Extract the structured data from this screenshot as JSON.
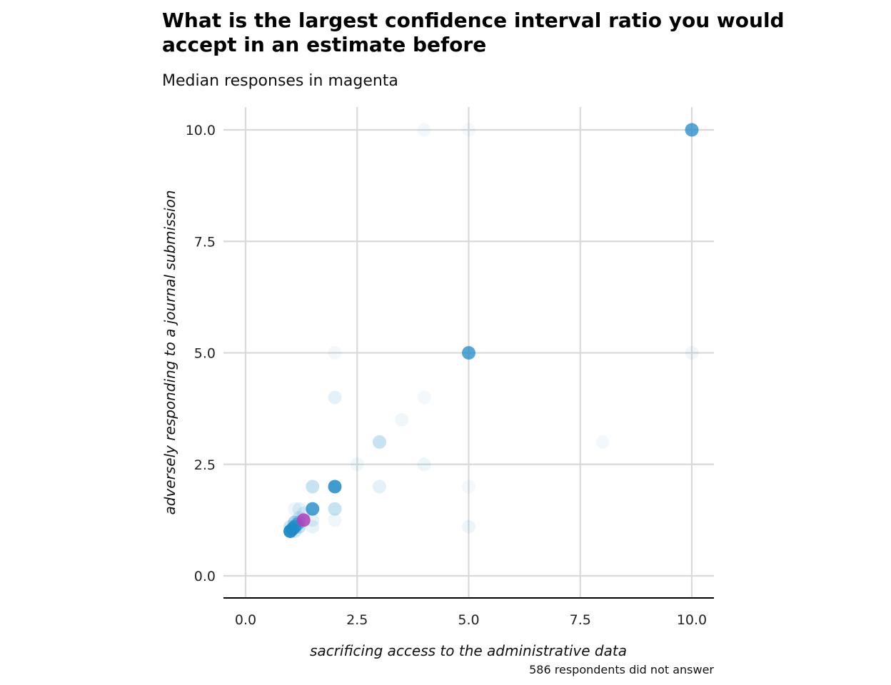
{
  "chart_data": {
    "type": "scatter",
    "title": "What is the largest confidence interval ratio you would accept in an estimate before",
    "subtitle": "Median responses in magenta",
    "xlabel": "sacrificing access to the administrative data",
    "ylabel": "adversely responding to a journal submission",
    "caption": "586 respondents did not answer",
    "xlim": [
      -0.5,
      10.5
    ],
    "ylim": [
      0.0,
      10.5
    ],
    "x_ticks": [
      "0.0",
      "2.5",
      "5.0",
      "7.5",
      "10.0"
    ],
    "y_ticks": [
      "0.0",
      "2.5",
      "5.0",
      "7.5",
      "10.0"
    ],
    "x_tick_values": [
      0,
      2.5,
      5,
      7.5,
      10
    ],
    "y_tick_values": [
      0,
      2.5,
      5,
      7.5,
      10
    ],
    "grid": true,
    "colors": {
      "points": "#1f8ac8",
      "median": "#b040b8",
      "grid": "#d9d9d9",
      "axis": "#000000"
    },
    "series": [
      {
        "points": [
          {
            "x": 10,
            "y": 10,
            "opacity": 0.75
          },
          {
            "x": 4,
            "y": 10,
            "opacity": 0.06
          },
          {
            "x": 5,
            "y": 10,
            "opacity": 0.05
          },
          {
            "x": 5,
            "y": 5,
            "opacity": 0.75
          },
          {
            "x": 10,
            "y": 5,
            "opacity": 0.07
          },
          {
            "x": 2,
            "y": 5,
            "opacity": 0.06
          },
          {
            "x": 2,
            "y": 4,
            "opacity": 0.12
          },
          {
            "x": 4,
            "y": 4,
            "opacity": 0.06
          },
          {
            "x": 3.5,
            "y": 3.5,
            "opacity": 0.07
          },
          {
            "x": 3,
            "y": 3,
            "opacity": 0.25
          },
          {
            "x": 8,
            "y": 3,
            "opacity": 0.06
          },
          {
            "x": 2.5,
            "y": 2.5,
            "opacity": 0.07
          },
          {
            "x": 4,
            "y": 2.5,
            "opacity": 0.08
          },
          {
            "x": 1.5,
            "y": 2,
            "opacity": 0.25
          },
          {
            "x": 2,
            "y": 2,
            "opacity": 0.85
          },
          {
            "x": 3,
            "y": 2,
            "opacity": 0.12
          },
          {
            "x": 5,
            "y": 2,
            "opacity": 0.06
          },
          {
            "x": 2,
            "y": 1.5,
            "opacity": 0.25
          },
          {
            "x": 1.5,
            "y": 1.5,
            "opacity": 0.8
          },
          {
            "x": 1.1,
            "y": 1.5,
            "opacity": 0.08
          },
          {
            "x": 1.2,
            "y": 1.5,
            "opacity": 0.12
          },
          {
            "x": 1.3,
            "y": 1.4,
            "opacity": 0.12
          },
          {
            "x": 5,
            "y": 1.1,
            "opacity": 0.08
          },
          {
            "x": 2,
            "y": 1.25,
            "opacity": 0.07
          },
          {
            "x": 1.5,
            "y": 1.25,
            "opacity": 0.12
          },
          {
            "x": 1.5,
            "y": 1.1,
            "opacity": 0.1
          },
          {
            "x": 1.2,
            "y": 1.3,
            "opacity": 0.15
          },
          {
            "x": 1.1,
            "y": 1.2,
            "opacity": 0.35
          },
          {
            "x": 1.2,
            "y": 1.2,
            "opacity": 0.35
          },
          {
            "x": 1.15,
            "y": 1.15,
            "opacity": 0.45
          },
          {
            "x": 1.1,
            "y": 1.1,
            "opacity": 0.7
          },
          {
            "x": 1.05,
            "y": 1.05,
            "opacity": 0.8
          },
          {
            "x": 1.0,
            "y": 1.1,
            "opacity": 0.2
          },
          {
            "x": 1.2,
            "y": 1.1,
            "opacity": 0.25
          },
          {
            "x": 1.0,
            "y": 1.0,
            "opacity": 0.95
          },
          {
            "x": 1.1,
            "y": 1.0,
            "opacity": 0.2
          }
        ]
      }
    ],
    "median": {
      "x": 1.3,
      "y": 1.25
    }
  }
}
